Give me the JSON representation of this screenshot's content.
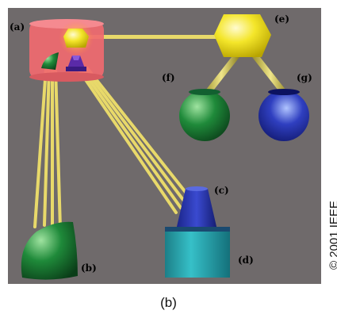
{
  "labels": {
    "a": "(a)",
    "b": "(b)",
    "c": "(c)",
    "d": "(d)",
    "e": "(e)",
    "f": "(f)",
    "g": "(g)"
  },
  "caption": "(b)",
  "copyright": "© 2001 IEEE",
  "colors": {
    "background": "#6f6a6b",
    "highlight_box": "#f06a70",
    "connector": "#e8d96a",
    "yellow": "#f4e62a",
    "green": "#1f8a3a",
    "blue": "#242ea8",
    "cyan": "#2aa6b0",
    "purple": "#5a2aa8"
  }
}
